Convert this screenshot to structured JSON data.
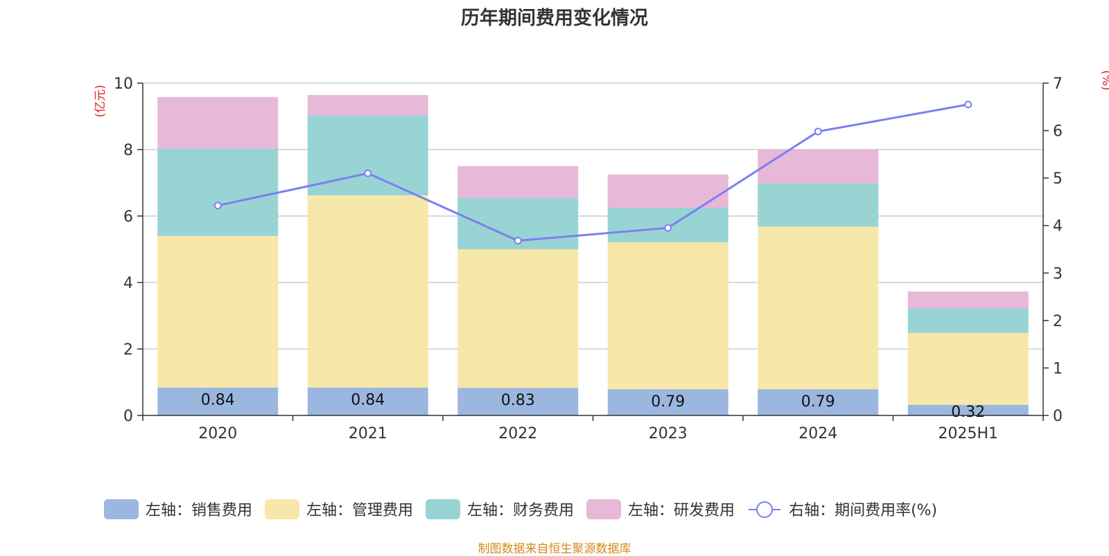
{
  "chart_data": {
    "type": "bar",
    "title": "历年期间费用变化情况",
    "categories": [
      "2020",
      "2021",
      "2022",
      "2023",
      "2024",
      "2025H1"
    ],
    "left_axis": {
      "unit": "(亿元)",
      "min": 0,
      "max": 10,
      "ticks": [
        "0",
        "2",
        "4",
        "6",
        "8",
        "10"
      ]
    },
    "right_axis": {
      "unit": "(%)",
      "min": 0,
      "max": 7,
      "ticks": [
        "0",
        "1",
        "2",
        "3",
        "4",
        "5",
        "6",
        "7"
      ]
    },
    "grid": true,
    "legend_position": "bottom",
    "series": [
      {
        "name": "左轴：销售费用",
        "type": "bar",
        "stack": true,
        "axis": "left",
        "color": "#9bb7e0",
        "values": [
          0.84,
          0.84,
          0.83,
          0.79,
          0.79,
          0.32
        ],
        "data_labels": [
          "0.84",
          "0.84",
          "0.83",
          "0.79",
          "0.79",
          "0.32"
        ]
      },
      {
        "name": "左轴：管理费用",
        "type": "bar",
        "stack": true,
        "axis": "left",
        "color": "#f7e7a8",
        "values": [
          4.56,
          5.78,
          4.17,
          4.42,
          4.89,
          2.16
        ]
      },
      {
        "name": "左轴：财务费用",
        "type": "bar",
        "stack": true,
        "axis": "left",
        "color": "#98d4d4",
        "values": [
          2.63,
          2.41,
          1.55,
          1.04,
          1.3,
          0.74
        ]
      },
      {
        "name": "左轴：研发费用",
        "type": "bar",
        "stack": true,
        "axis": "left",
        "color": "#e7b8d8",
        "values": [
          1.55,
          0.61,
          0.95,
          1.0,
          1.02,
          0.51
        ]
      },
      {
        "name": "右轴：期间费用率(%)",
        "type": "line",
        "axis": "right",
        "color": "#7b7ff0",
        "values": [
          4.42,
          5.1,
          3.68,
          3.95,
          5.98,
          6.55
        ]
      }
    ]
  },
  "source": "制图数据来自恒生聚源数据库"
}
